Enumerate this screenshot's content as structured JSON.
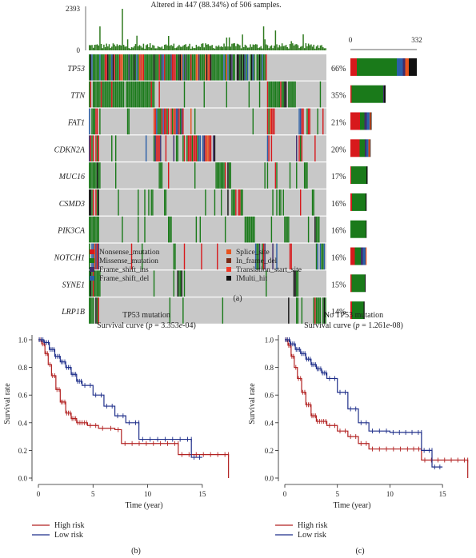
{
  "panel_a": {
    "caption": "(a)",
    "header": "Altered in 447 (88.34%) of 506 samples.",
    "tmb_axis": {
      "max_label": "2393",
      "min_label": "0"
    },
    "count_axis": {
      "min_label": "0",
      "max_label": "332",
      "max": 332
    },
    "genes": [
      {
        "name": "TP53",
        "pct": "66%",
        "pct_value": 66,
        "count_total": 332,
        "stack": [
          {
            "type": "nonsense",
            "value": 32
          },
          {
            "type": "missense",
            "value": 200
          },
          {
            "type": "frame_shift_del",
            "value": 30
          },
          {
            "type": "frame_shift_ins",
            "value": 12
          },
          {
            "type": "splice",
            "value": 18
          },
          {
            "type": "multi",
            "value": 40
          }
        ]
      },
      {
        "name": "TTN",
        "pct": "35%",
        "pct_value": 35,
        "count_total": 176,
        "stack": [
          {
            "type": "nonsense",
            "value": 6
          },
          {
            "type": "missense",
            "value": 158
          },
          {
            "type": "frame_shift_ins",
            "value": 4
          },
          {
            "type": "multi",
            "value": 8
          }
        ]
      },
      {
        "name": "FAT1",
        "pct": "21%",
        "pct_value": 21,
        "count_total": 106,
        "stack": [
          {
            "type": "nonsense",
            "value": 48
          },
          {
            "type": "missense",
            "value": 22
          },
          {
            "type": "frame_shift_ins",
            "value": 12
          },
          {
            "type": "frame_shift_del",
            "value": 14
          },
          {
            "type": "splice",
            "value": 6
          },
          {
            "type": "multi",
            "value": 4
          }
        ]
      },
      {
        "name": "CDKN2A",
        "pct": "20%",
        "pct_value": 20,
        "count_total": 101,
        "stack": [
          {
            "type": "nonsense",
            "value": 46
          },
          {
            "type": "missense",
            "value": 26
          },
          {
            "type": "frame_shift_ins",
            "value": 8
          },
          {
            "type": "frame_shift_del",
            "value": 10
          },
          {
            "type": "splice",
            "value": 8
          },
          {
            "type": "multi",
            "value": 3
          }
        ]
      },
      {
        "name": "MUC16",
        "pct": "17%",
        "pct_value": 17,
        "count_total": 86,
        "stack": [
          {
            "type": "nonsense",
            "value": 4
          },
          {
            "type": "missense",
            "value": 76
          },
          {
            "type": "multi",
            "value": 6
          }
        ]
      },
      {
        "name": "CSMD3",
        "pct": "16%",
        "pct_value": 16,
        "count_total": 81,
        "stack": [
          {
            "type": "nonsense",
            "value": 8
          },
          {
            "type": "missense",
            "value": 68
          },
          {
            "type": "multi",
            "value": 5
          }
        ]
      },
      {
        "name": "PIK3CA",
        "pct": "16%",
        "pct_value": 16,
        "count_total": 81,
        "stack": [
          {
            "type": "missense",
            "value": 78
          },
          {
            "type": "multi",
            "value": 3
          }
        ]
      },
      {
        "name": "NOTCH1",
        "pct": "16%",
        "pct_value": 16,
        "count_total": 81,
        "stack": [
          {
            "type": "nonsense",
            "value": 22
          },
          {
            "type": "missense",
            "value": 30
          },
          {
            "type": "frame_shift_ins",
            "value": 10
          },
          {
            "type": "frame_shift_del",
            "value": 14
          },
          {
            "type": "splice",
            "value": 5
          }
        ]
      },
      {
        "name": "SYNE1",
        "pct": "15%",
        "pct_value": 15,
        "count_total": 76,
        "stack": [
          {
            "type": "nonsense",
            "value": 6
          },
          {
            "type": "missense",
            "value": 66
          },
          {
            "type": "multi",
            "value": 4
          }
        ]
      },
      {
        "name": "LRP1B",
        "pct": "14%",
        "pct_value": 14,
        "count_total": 71,
        "stack": [
          {
            "type": "nonsense",
            "value": 8
          },
          {
            "type": "missense",
            "value": 58
          },
          {
            "type": "multi",
            "value": 5
          }
        ]
      }
    ],
    "legend": [
      {
        "type": "nonsense",
        "label": "Nonsense_mutation",
        "color": "#d7191c"
      },
      {
        "type": "missense",
        "label": "Missense_mutation",
        "color": "#1a7a1a"
      },
      {
        "type": "frame_shift_ins",
        "label": "Frame_shift_ins",
        "color": "#3f2d6b"
      },
      {
        "type": "frame_shift_del",
        "label": "Frame_shift_del",
        "color": "#2b5fa8"
      },
      {
        "type": "splice",
        "label": "Splice_site",
        "color": "#e8531e"
      },
      {
        "type": "in_frame_del",
        "label": "In_frame_del",
        "color": "#7a2a16"
      },
      {
        "type": "translation_start",
        "label": "Translation_start_site",
        "color": "#f23a2a"
      },
      {
        "type": "multi",
        "label": "IMulti_hit",
        "color": "#111111"
      }
    ],
    "background_color": "#c8c8c8"
  },
  "panel_b": {
    "caption": "(b)",
    "title_line1": "TP53 mutation",
    "title_prefix": "Survival curve (",
    "p_label": "p",
    "p_text": " = 3.353",
    "p_exp": "e",
    "p_exp_value": "-04",
    "title_suffix": ")",
    "ylabel": "Survival rate",
    "xlabel": "Time (year)",
    "yticks": [
      "0.0",
      "0.2",
      "0.4",
      "0.6",
      "0.8",
      "1.0"
    ],
    "xticks": [
      "0",
      "5",
      "10",
      "15"
    ],
    "legend": [
      {
        "label": "High risk",
        "color": "#b22222"
      },
      {
        "label": "Low risk",
        "color": "#1f2f8a"
      }
    ]
  },
  "panel_c": {
    "caption": "(c)",
    "title_line1": "No TP53 mutation",
    "title_prefix": "Survival curve (",
    "p_label": "p",
    "p_text": " = 1.261",
    "p_exp": "e",
    "p_exp_value": "-08",
    "title_suffix": ")",
    "ylabel": "Survival rate",
    "xlabel": "Time (year)",
    "yticks": [
      "0.0",
      "0.2",
      "0.4",
      "0.6",
      "0.8",
      "1.0"
    ],
    "xticks": [
      "0",
      "5",
      "10",
      "15"
    ],
    "legend": [
      {
        "label": "High risk",
        "color": "#b22222"
      },
      {
        "label": "Low risk",
        "color": "#1f2f8a"
      }
    ]
  },
  "chart_data": [
    {
      "type": "bar",
      "title": "",
      "categories": [
        "TP53",
        "TTN",
        "FAT1",
        "CDKN2A",
        "MUC16",
        "CSMD3",
        "PIK3CA",
        "NOTCH1",
        "SYNE1",
        "LRP1B"
      ],
      "values": [
        66,
        35,
        21,
        20,
        17,
        16,
        16,
        16,
        15,
        14
      ],
      "ylabel": "",
      "note_values_unit": "percent of samples altered"
    },
    {
      "type": "line",
      "title": "TP53 mutation Survival curve (p = 3.353e-04)",
      "xlabel": "Time (year)",
      "ylabel": "Survival rate",
      "xlim": [
        0,
        17.5
      ],
      "ylim": [
        0,
        1.0
      ],
      "series": [
        {
          "name": "High risk",
          "points": [
            [
              0,
              1.0
            ],
            [
              0.3,
              0.97
            ],
            [
              0.6,
              0.9
            ],
            [
              0.9,
              0.82
            ],
            [
              1.2,
              0.74
            ],
            [
              1.6,
              0.64
            ],
            [
              2.0,
              0.55
            ],
            [
              2.5,
              0.47
            ],
            [
              3.0,
              0.43
            ],
            [
              3.5,
              0.4
            ],
            [
              4.5,
              0.38
            ],
            [
              5.5,
              0.36
            ],
            [
              7.0,
              0.35
            ],
            [
              7.6,
              0.25
            ],
            [
              12.8,
              0.25
            ],
            [
              12.8,
              0.17
            ],
            [
              17.4,
              0.17
            ],
            [
              17.4,
              0.0
            ]
          ]
        },
        {
          "name": "Low risk",
          "points": [
            [
              0,
              1.0
            ],
            [
              0.5,
              0.98
            ],
            [
              1.0,
              0.93
            ],
            [
              1.5,
              0.88
            ],
            [
              2.0,
              0.84
            ],
            [
              2.5,
              0.8
            ],
            [
              3.0,
              0.75
            ],
            [
              3.5,
              0.7
            ],
            [
              4.0,
              0.67
            ],
            [
              5.0,
              0.6
            ],
            [
              6.0,
              0.52
            ],
            [
              7.0,
              0.45
            ],
            [
              8.0,
              0.4
            ],
            [
              9.2,
              0.4
            ],
            [
              9.2,
              0.28
            ],
            [
              14.0,
              0.28
            ],
            [
              14.0,
              0.15
            ],
            [
              15.0,
              0.15
            ]
          ]
        }
      ]
    },
    {
      "type": "line",
      "title": "No TP53 mutation Survival curve (p = 1.261e-08)",
      "xlabel": "Time (year)",
      "ylabel": "Survival rate",
      "xlim": [
        0,
        17.5
      ],
      "ylim": [
        0,
        1.0
      ],
      "series": [
        {
          "name": "High risk",
          "points": [
            [
              0,
              1.0
            ],
            [
              0.3,
              0.96
            ],
            [
              0.6,
              0.88
            ],
            [
              0.9,
              0.8
            ],
            [
              1.2,
              0.72
            ],
            [
              1.6,
              0.62
            ],
            [
              2.0,
              0.53
            ],
            [
              2.5,
              0.45
            ],
            [
              3.0,
              0.41
            ],
            [
              4.0,
              0.38
            ],
            [
              5.0,
              0.34
            ],
            [
              6.0,
              0.3
            ],
            [
              7.0,
              0.25
            ],
            [
              8.0,
              0.21
            ],
            [
              12.0,
              0.21
            ],
            [
              13.0,
              0.21
            ],
            [
              13.0,
              0.13
            ],
            [
              17.4,
              0.13
            ],
            [
              17.4,
              0.0
            ]
          ]
        },
        {
          "name": "Low risk",
          "points": [
            [
              0,
              1.0
            ],
            [
              0.5,
              0.97
            ],
            [
              1.0,
              0.93
            ],
            [
              1.5,
              0.9
            ],
            [
              2.0,
              0.86
            ],
            [
              2.5,
              0.82
            ],
            [
              3.0,
              0.79
            ],
            [
              3.5,
              0.76
            ],
            [
              4.0,
              0.72
            ],
            [
              5.0,
              0.62
            ],
            [
              6.0,
              0.5
            ],
            [
              7.0,
              0.4
            ],
            [
              8.0,
              0.34
            ],
            [
              10.0,
              0.33
            ],
            [
              13.0,
              0.33
            ],
            [
              13.0,
              0.2
            ],
            [
              14.0,
              0.2
            ],
            [
              14.0,
              0.08
            ],
            [
              15.0,
              0.08
            ]
          ]
        }
      ]
    }
  ]
}
